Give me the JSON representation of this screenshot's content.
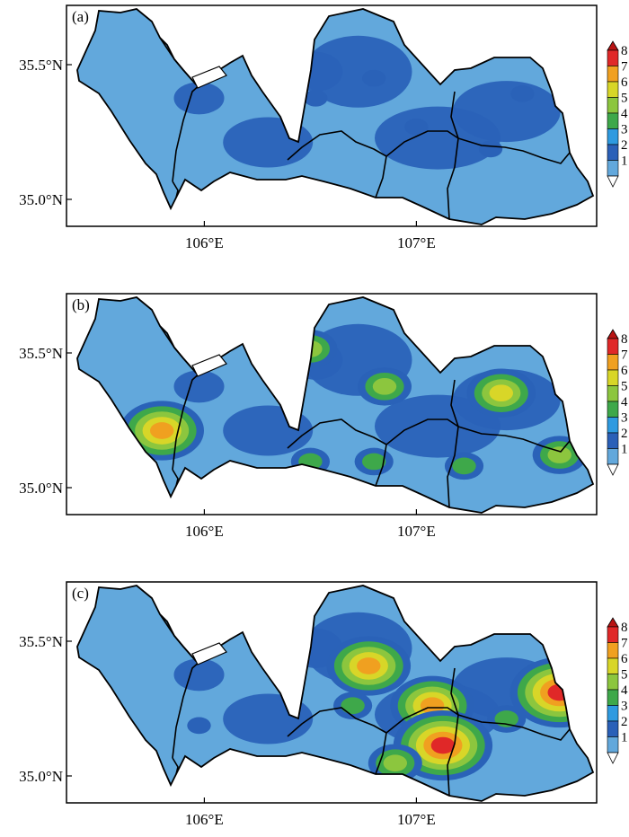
{
  "figure": {
    "panels": [
      {
        "tag": "(a)",
        "hotspots": [
          [
            0.58,
            0.33,
            1
          ],
          [
            0.66,
            0.55,
            1
          ],
          [
            0.47,
            0.42,
            1
          ],
          [
            0.8,
            0.65,
            1
          ],
          [
            0.86,
            0.4,
            1
          ],
          [
            0.25,
            0.3,
            1
          ]
        ]
      },
      {
        "tag": "(b)",
        "hotspots": [
          [
            0.18,
            0.62,
            5
          ],
          [
            0.46,
            0.25,
            3
          ],
          [
            0.6,
            0.42,
            3
          ],
          [
            0.82,
            0.45,
            4
          ],
          [
            0.93,
            0.73,
            3
          ],
          [
            0.46,
            0.76,
            2
          ],
          [
            0.58,
            0.76,
            2
          ],
          [
            0.75,
            0.78,
            2
          ]
        ]
      },
      {
        "tag": "(c)",
        "hotspots": [
          [
            0.57,
            0.38,
            5
          ],
          [
            0.69,
            0.56,
            5
          ],
          [
            0.71,
            0.74,
            6
          ],
          [
            0.93,
            0.5,
            6
          ],
          [
            0.54,
            0.56,
            2
          ],
          [
            0.62,
            0.82,
            3
          ],
          [
            0.83,
            0.62,
            2
          ],
          [
            0.25,
            0.65,
            1
          ]
        ]
      }
    ],
    "lat_ticks": [
      {
        "label": "35.5°N",
        "value": 35.5
      },
      {
        "label": "35.0°N",
        "value": 35.0
      }
    ],
    "lon_ticks": [
      {
        "label": "106°E",
        "value": 106
      },
      {
        "label": "107°E",
        "value": 107
      }
    ],
    "extent": {
      "lon_min": 105.35,
      "lon_max": 107.85,
      "lat_min": 34.9,
      "lat_max": 35.72
    },
    "colorbar": {
      "levels": [
        "1",
        "2",
        "3",
        "4",
        "5",
        "6",
        "7",
        "8"
      ],
      "colors": [
        "#ffffff",
        "#62a8dc",
        "#2a60b8",
        "#2e9ae0",
        "#3ea84a",
        "#8cc63e",
        "#d8d628",
        "#f0a020",
        "#e02828",
        "#b81414"
      ]
    },
    "colors": {
      "base": "#62a8dc",
      "land2": "#2a62b8",
      "border": "#000000"
    }
  }
}
